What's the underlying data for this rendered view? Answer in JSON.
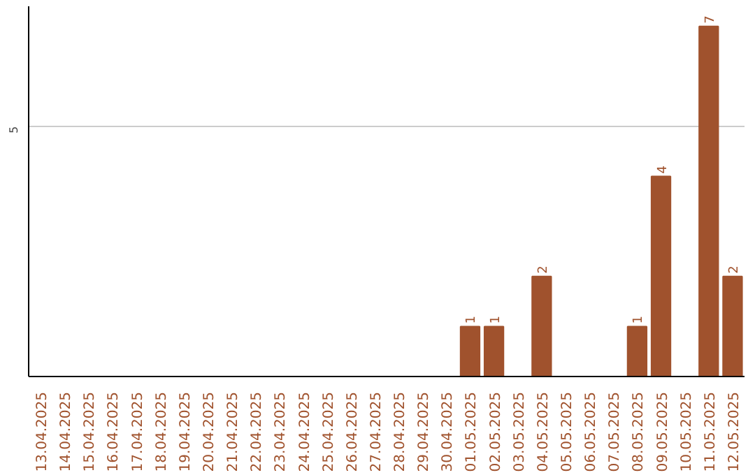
{
  "chart_data": {
    "type": "bar",
    "categories": [
      "13.04.2025",
      "14.04.2025",
      "15.04.2025",
      "16.04.2025",
      "17.04.2025",
      "18.04.2025",
      "19.04.2025",
      "20.04.2025",
      "21.04.2025",
      "22.04.2025",
      "23.04.2025",
      "24.04.2025",
      "25.04.2025",
      "26.04.2025",
      "27.04.2025",
      "28.04.2025",
      "29.04.2025",
      "30.04.2025",
      "01.05.2025",
      "02.05.2025",
      "03.05.2025",
      "04.05.2025",
      "05.05.2025",
      "06.05.2025",
      "07.05.2025",
      "08.05.2025",
      "09.05.2025",
      "10.05.2025",
      "11.05.2025",
      "12.05.2025"
    ],
    "values": [
      null,
      null,
      null,
      null,
      null,
      null,
      null,
      null,
      null,
      null,
      null,
      null,
      null,
      null,
      null,
      null,
      null,
      null,
      1,
      1,
      null,
      2,
      null,
      null,
      null,
      1,
      4,
      null,
      7,
      2
    ],
    "color": "#a0522d",
    "ylim": [
      0,
      7.4
    ],
    "yticks": [
      5
    ],
    "grid": "y",
    "data_labels": true
  }
}
